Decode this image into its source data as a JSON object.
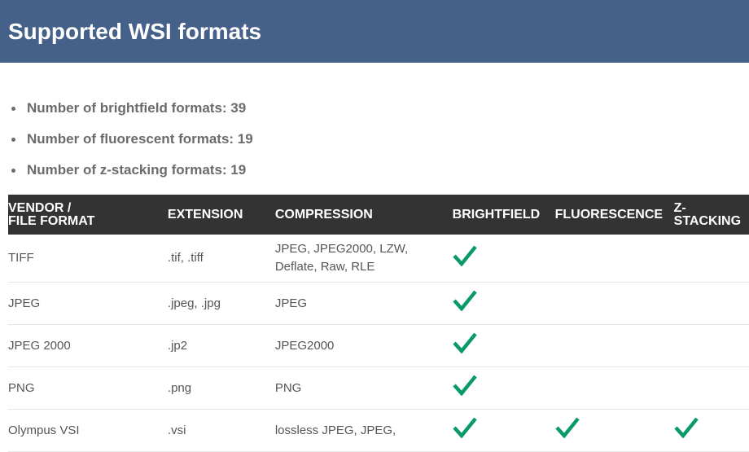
{
  "title": "Supported WSI formats",
  "stats": [
    "Number of brightfield formats: 39",
    "Number of fluorescent formats: 19",
    "Number of z-stacking formats: 19"
  ],
  "columns": [
    "VENDOR / FILE FORMAT",
    "EXTENSION",
    "COMPRESSION",
    "BRIGHTFIELD",
    "FLUORESCENCE",
    "Z-STACKING"
  ],
  "check_color": "#0a9a68",
  "rows": [
    {
      "format": "TIFF",
      "extension": ".tif, .tiff",
      "compression": "JPEG, JPEG2000, LZW, Deflate, Raw, RLE",
      "brightfield": true,
      "fluorescence": false,
      "zstacking": false
    },
    {
      "format": "JPEG",
      "extension": ".jpeg, .jpg",
      "compression": "JPEG",
      "brightfield": true,
      "fluorescence": false,
      "zstacking": false
    },
    {
      "format": "JPEG 2000",
      "extension": ".jp2",
      "compression": "JPEG2000",
      "brightfield": true,
      "fluorescence": false,
      "zstacking": false
    },
    {
      "format": "PNG",
      "extension": ".png",
      "compression": "PNG",
      "brightfield": true,
      "fluorescence": false,
      "zstacking": false
    },
    {
      "format": "Olympus VSI",
      "extension": ".vsi",
      "compression": "lossless JPEG, JPEG,",
      "brightfield": true,
      "fluorescence": true,
      "zstacking": true
    }
  ]
}
